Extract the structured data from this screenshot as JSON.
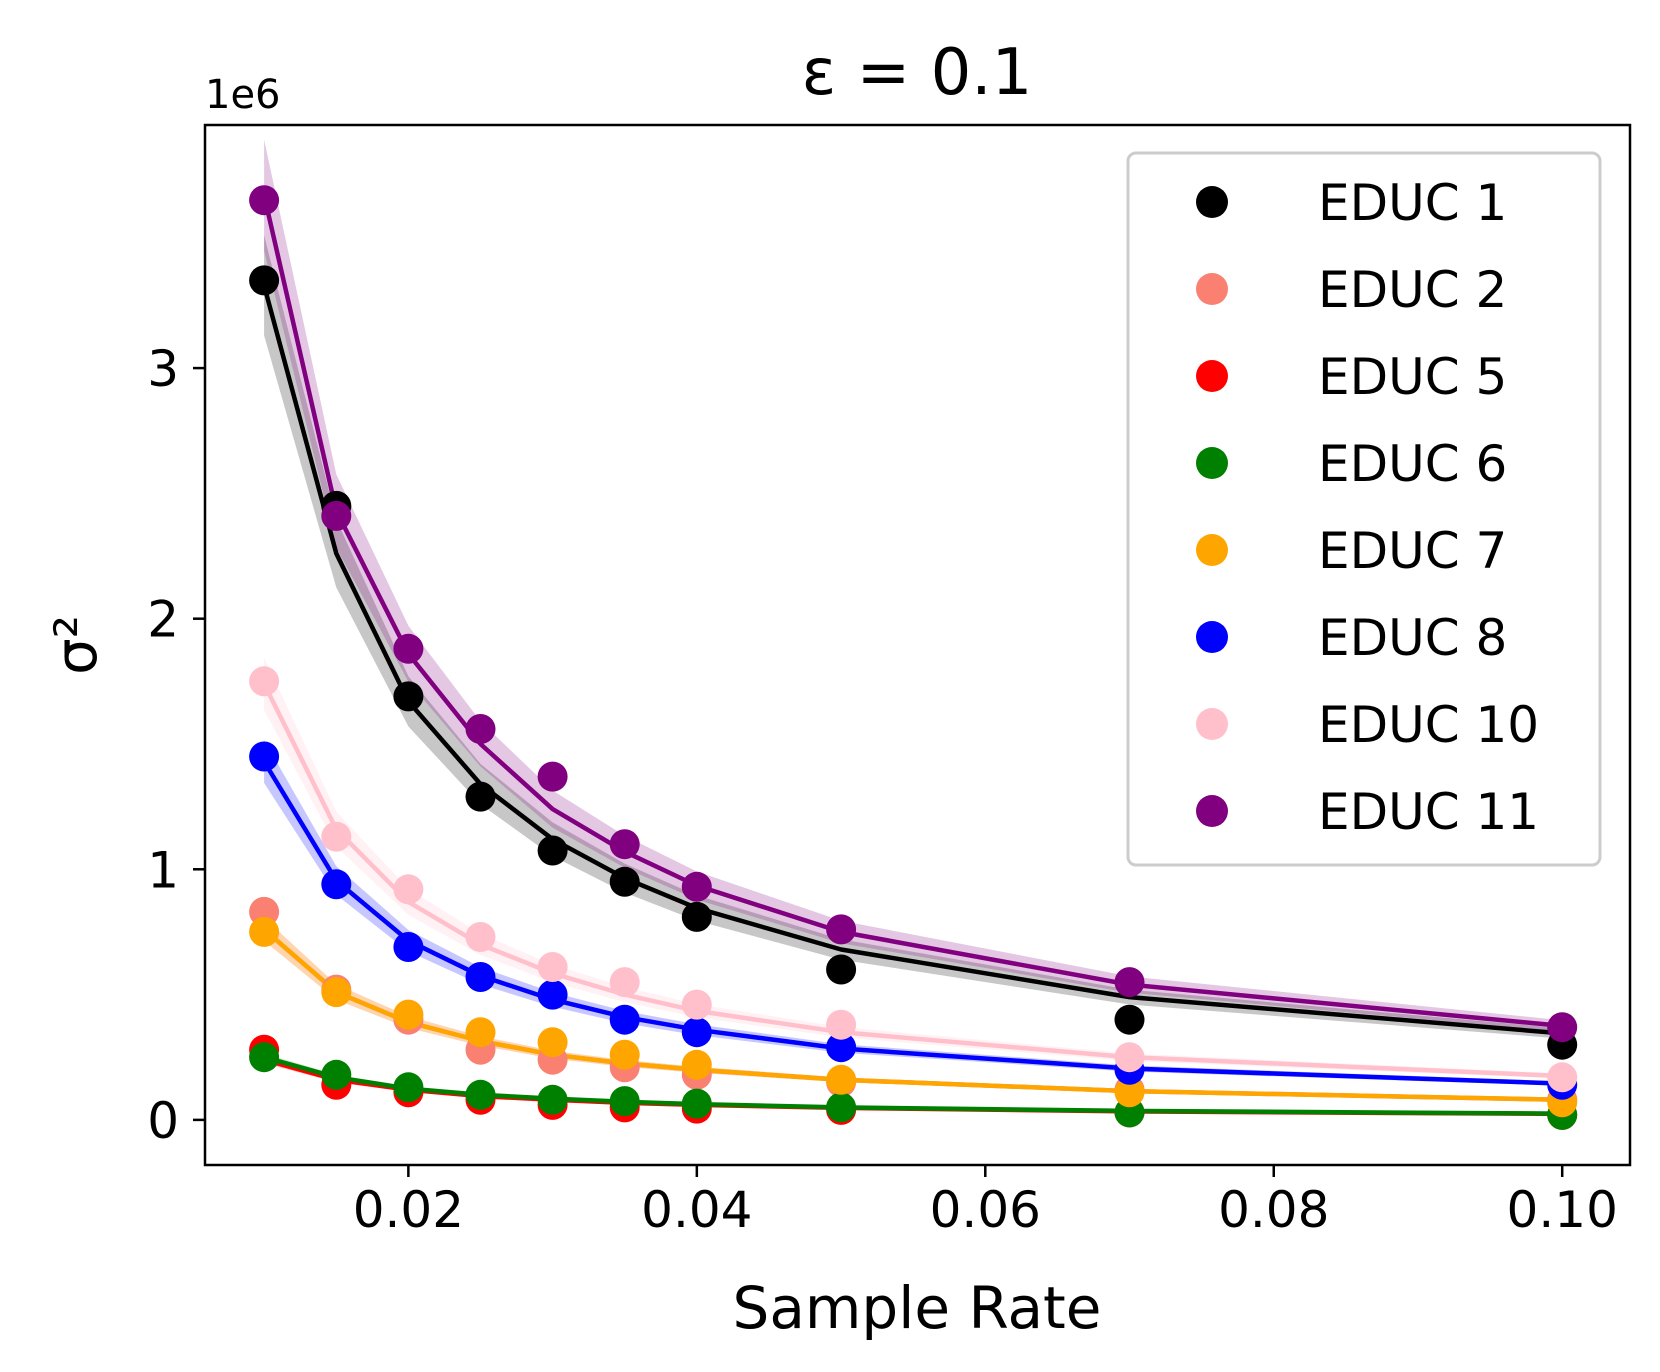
{
  "chart_data": {
    "type": "line",
    "title": "ε = 0.1",
    "xlabel": "Sample Rate",
    "ylabel": "σ²",
    "y_offset_text": "1e6",
    "xlim": [
      0.0059,
      0.1047
    ],
    "ylim": [
      -180000,
      3970000
    ],
    "x_ticks": [
      {
        "value": 0.02,
        "label": "0.02"
      },
      {
        "value": 0.04,
        "label": "0.04"
      },
      {
        "value": 0.06,
        "label": "0.06"
      },
      {
        "value": 0.08,
        "label": "0.08"
      },
      {
        "value": 0.1,
        "label": "0.10"
      }
    ],
    "y_ticks": [
      {
        "value": 0,
        "label": "0"
      },
      {
        "value": 1000000,
        "label": "1"
      },
      {
        "value": 2000000,
        "label": "2"
      },
      {
        "value": 3000000,
        "label": "3"
      }
    ],
    "grid": false,
    "legend_position": "top-right",
    "x": [
      0.01,
      0.015,
      0.02,
      0.025,
      0.03,
      0.035,
      0.04,
      0.05,
      0.07,
      0.1
    ],
    "series": [
      {
        "name": "EDUC 1",
        "color": "#000000",
        "points": [
          3350000,
          2450000,
          1690000,
          1290000,
          1075000,
          950000,
          810000,
          600000,
          400000,
          300000
        ],
        "fit": [
          3330000,
          2260000,
          1670000,
          1340000,
          1120000,
          965000,
          845000,
          680000,
          490000,
          345000
        ]
      },
      {
        "name": "EDUC 2",
        "color": "#fa8072",
        "points": [
          830000,
          520000,
          400000,
          280000,
          240000,
          210000,
          180000,
          150000,
          120000,
          80000
        ],
        "fit": [
          760000,
          510000,
          390000,
          315000,
          260000,
          225000,
          200000,
          160000,
          115000,
          80000
        ]
      },
      {
        "name": "EDUC 5",
        "color": "#ff0000",
        "points": [
          280000,
          140000,
          110000,
          80000,
          60000,
          50000,
          45000,
          40000,
          30000,
          20000
        ],
        "fit": [
          240000,
          160000,
          120000,
          95000,
          80000,
          68000,
          60000,
          48000,
          34000,
          24000
        ]
      },
      {
        "name": "EDUC 6",
        "color": "#008000",
        "points": [
          250000,
          180000,
          130000,
          100000,
          80000,
          75000,
          65000,
          50000,
          30000,
          20000
        ],
        "fit": [
          250000,
          170000,
          125000,
          100000,
          85000,
          72000,
          63000,
          50000,
          36000,
          25000
        ]
      },
      {
        "name": "EDUC 7",
        "color": "#ffa500",
        "points": [
          750000,
          510000,
          420000,
          350000,
          310000,
          260000,
          220000,
          160000,
          110000,
          70000
        ],
        "fit": [
          760000,
          510000,
          390000,
          315000,
          260000,
          225000,
          200000,
          160000,
          115000,
          80000
        ]
      },
      {
        "name": "EDUC 8",
        "color": "#0000ff",
        "points": [
          1450000,
          940000,
          690000,
          570000,
          500000,
          400000,
          350000,
          290000,
          200000,
          140000
        ],
        "fit": [
          1430000,
          955000,
          715000,
          575000,
          480000,
          410000,
          360000,
          285000,
          205000,
          145000
        ]
      },
      {
        "name": "EDUC 10",
        "color": "#ffc0cb",
        "points": [
          1750000,
          1130000,
          920000,
          730000,
          610000,
          550000,
          460000,
          380000,
          250000,
          170000
        ],
        "fit": [
          1740000,
          1160000,
          870000,
          700000,
          585000,
          500000,
          435000,
          350000,
          250000,
          175000
        ]
      },
      {
        "name": "EDUC 11",
        "color": "#800080",
        "points": [
          3670000,
          2410000,
          1880000,
          1560000,
          1370000,
          1100000,
          930000,
          760000,
          550000,
          370000
        ],
        "fit": [
          3690000,
          2430000,
          1860000,
          1500000,
          1240000,
          1070000,
          935000,
          750000,
          540000,
          375000
        ]
      }
    ]
  }
}
